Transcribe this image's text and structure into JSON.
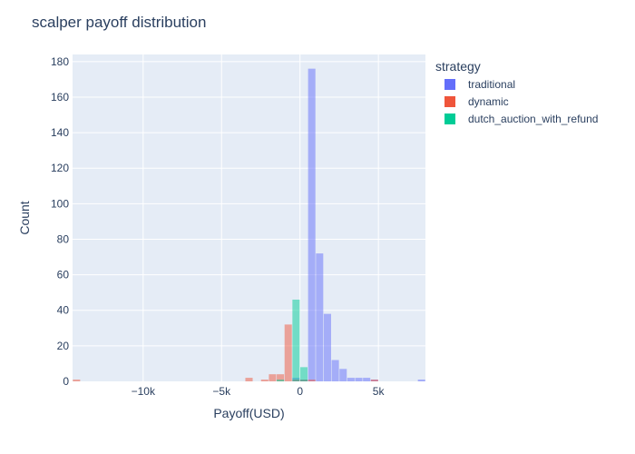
{
  "chart_data": {
    "type": "bar",
    "title": "scalper payoff distribution",
    "xlabel": "Payoff(USD)",
    "ylabel": "Count",
    "xlim": [
      -14500,
      8000
    ],
    "ylim": [
      0,
      184
    ],
    "bin_width": 500,
    "x_ticks": [
      {
        "value": -10000,
        "label": "−10k"
      },
      {
        "value": -5000,
        "label": "−5k"
      },
      {
        "value": 0,
        "label": "0"
      },
      {
        "value": 5000,
        "label": "5k"
      }
    ],
    "y_ticks": [
      {
        "value": 0,
        "label": "0"
      },
      {
        "value": 20,
        "label": "20"
      },
      {
        "value": 40,
        "label": "40"
      },
      {
        "value": 60,
        "label": "60"
      },
      {
        "value": 80,
        "label": "80"
      },
      {
        "value": 100,
        "label": "100"
      },
      {
        "value": 120,
        "label": "120"
      },
      {
        "value": 140,
        "label": "140"
      },
      {
        "value": 160,
        "label": "160"
      },
      {
        "value": 180,
        "label": "180"
      }
    ],
    "grid": true,
    "legend_position": "right",
    "legend_title": "strategy",
    "series": [
      {
        "name": "traditional",
        "color": "#636efa",
        "bins": [
          {
            "x0": -500,
            "count": 2
          },
          {
            "x0": 0,
            "count": 1
          },
          {
            "x0": 500,
            "count": 176
          },
          {
            "x0": 1000,
            "count": 72
          },
          {
            "x0": 1500,
            "count": 38
          },
          {
            "x0": 2000,
            "count": 12
          },
          {
            "x0": 2500,
            "count": 7
          },
          {
            "x0": 3000,
            "count": 2
          },
          {
            "x0": 3500,
            "count": 2
          },
          {
            "x0": 4000,
            "count": 2
          },
          {
            "x0": 4500,
            "count": 1
          },
          {
            "x0": 7500,
            "count": 1
          }
        ]
      },
      {
        "name": "dynamic",
        "color": "#ef553b",
        "bins": [
          {
            "x0": -14500,
            "count": 1
          },
          {
            "x0": -3500,
            "count": 2
          },
          {
            "x0": -2500,
            "count": 1
          },
          {
            "x0": -2000,
            "count": 4
          },
          {
            "x0": -1500,
            "count": 4
          },
          {
            "x0": -1000,
            "count": 32
          },
          {
            "x0": -500,
            "count": 1
          },
          {
            "x0": 0,
            "count": 1
          },
          {
            "x0": 500,
            "count": 1
          },
          {
            "x0": 4500,
            "count": 1
          }
        ]
      },
      {
        "name": "dutch_auction_with_refund",
        "color": "#00cc96",
        "bins": [
          {
            "x0": -1500,
            "count": 1
          },
          {
            "x0": -500,
            "count": 46
          },
          {
            "x0": 0,
            "count": 8
          }
        ]
      }
    ]
  }
}
